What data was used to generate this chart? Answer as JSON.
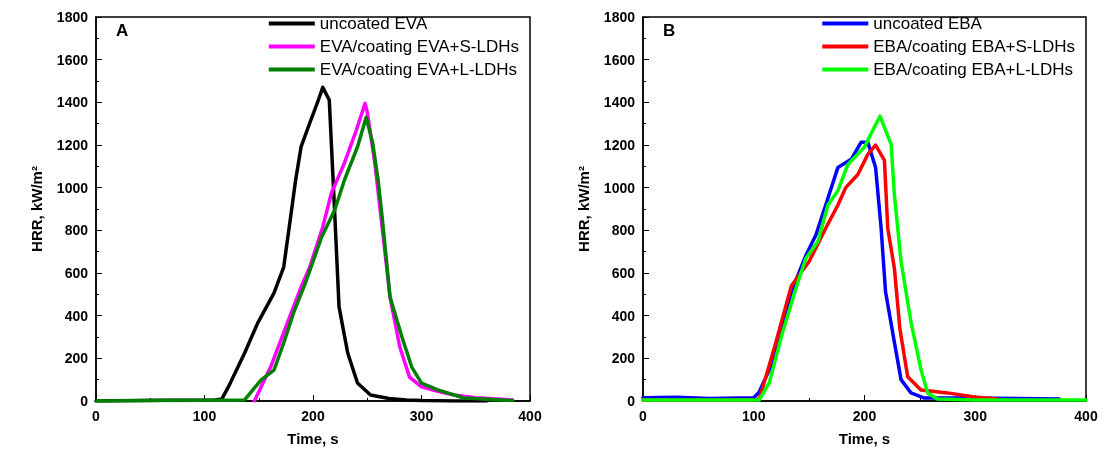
{
  "chart_data": [
    {
      "type": "line",
      "annotations": [
        "A"
      ],
      "xlabel": "Time, s",
      "ylabel": "HRR, kW/m²",
      "xlim": [
        0,
        400
      ],
      "xticks": [
        0,
        100,
        200,
        300,
        400
      ],
      "ylim": [
        0,
        1800
      ],
      "yticks": [
        0,
        200,
        400,
        600,
        800,
        1000,
        1200,
        1400,
        1600,
        1800
      ],
      "legend": "top right",
      "grid": false,
      "marker": "none",
      "line_style": "solid",
      "series": [
        {
          "name": "uncoated EVA",
          "color": "#000000",
          "x": [
            0,
            60,
            110,
            116,
            122,
            137,
            149,
            164,
            173,
            179,
            184,
            189,
            197,
            204,
            209,
            215,
            220,
            224,
            232,
            241,
            253,
            270,
            286,
            300,
            330,
            360
          ],
          "values": [
            0,
            3,
            5,
            10,
            66,
            225,
            365,
            506,
            628,
            849,
            1036,
            1191,
            1303,
            1397,
            1470,
            1411,
            881,
            441,
            225,
            84,
            28,
            12,
            5,
            2,
            0,
            0
          ]
        },
        {
          "name": "EVA/coating EVA+S-LDHs",
          "color": "#ff00ff",
          "x": [
            146,
            161,
            175,
            189,
            197,
            209,
            217,
            229,
            240,
            248,
            250,
            257,
            264,
            271,
            280,
            289,
            300,
            315,
            330,
            350,
            384
          ],
          "values": [
            0,
            160,
            347,
            534,
            628,
            816,
            975,
            1116,
            1270,
            1395,
            1355,
            1116,
            802,
            487,
            253,
            112,
            66,
            45,
            28,
            15,
            5
          ]
        },
        {
          "name": "EVA/coating EVA+L-LDHs",
          "color": "#008000",
          "x": [
            0,
            60,
            120,
            137,
            152,
            164,
            173,
            182,
            194,
            208,
            220,
            229,
            241,
            249,
            255,
            260,
            264,
            271,
            282,
            291,
            300,
            315,
            339,
            384
          ],
          "values": [
            0,
            2,
            3,
            5,
            98,
            145,
            272,
            412,
            567,
            769,
            895,
            1036,
            1191,
            1330,
            1209,
            1036,
            849,
            487,
            300,
            159,
            84,
            52,
            14,
            2
          ]
        }
      ]
    },
    {
      "type": "line",
      "annotations": [
        "B"
      ],
      "xlabel": "Time, s",
      "ylabel": "HRR, kW/m²",
      "xlim": [
        0,
        400
      ],
      "xticks": [
        0,
        100,
        200,
        300,
        400
      ],
      "ylim": [
        0,
        1800
      ],
      "yticks": [
        0,
        200,
        400,
        600,
        800,
        1000,
        1200,
        1400,
        1600,
        1800
      ],
      "legend": "top right",
      "grid": false,
      "marker": "none",
      "line_style": "solid",
      "series": [
        {
          "name": "uncoated EBA",
          "color": "#0000ff",
          "x": [
            0,
            30,
            60,
            100,
            105,
            117,
            125,
            134,
            147,
            156,
            165,
            176,
            188,
            197,
            203,
            210,
            215,
            219,
            227,
            233,
            242,
            254,
            290,
            376
          ],
          "values": [
            15,
            18,
            12,
            15,
            43,
            180,
            336,
            512,
            682,
            777,
            919,
            1095,
            1133,
            1213,
            1213,
            1095,
            810,
            512,
            275,
            100,
            38,
            14,
            14,
            9
          ]
        },
        {
          "name": "EBA/coating EBA+S-LDHs",
          "color": "#ff0000",
          "x": [
            0,
            100,
            105,
            111,
            120,
            134,
            150,
            165,
            176,
            183,
            194,
            203,
            210,
            218,
            221,
            227,
            232,
            239,
            251,
            275,
            299,
            320
          ],
          "values": [
            5,
            5,
            10,
            114,
            275,
            540,
            654,
            810,
            919,
            1000,
            1062,
            1156,
            1200,
            1128,
            810,
            621,
            336,
            114,
            52,
            38,
            19,
            9
          ]
        },
        {
          "name": "EBA/coating EBA+L-LDHs",
          "color": "#00ff00",
          "x": [
            0,
            60,
            105,
            114,
            125,
            138,
            147,
            158,
            167,
            176,
            185,
            200,
            209,
            214,
            224,
            227,
            233,
            242,
            251,
            257,
            266,
            300,
            400
          ],
          "values": [
            5,
            5,
            5,
            85,
            303,
            526,
            668,
            749,
            919,
            986,
            1109,
            1190,
            1284,
            1335,
            1204,
            967,
            654,
            370,
            147,
            38,
            9,
            5,
            5
          ]
        }
      ]
    }
  ]
}
